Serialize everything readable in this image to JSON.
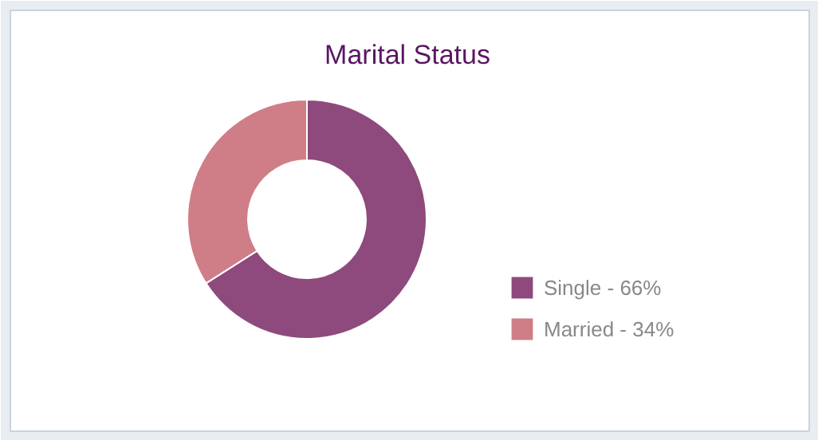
{
  "chart_data": {
    "type": "donut",
    "title": "Marital Status",
    "categories": [
      "Single - 66%",
      "Married - 34%"
    ],
    "values": [
      66,
      34
    ],
    "colors": [
      "#8e4a7c",
      "#cf7d87"
    ],
    "legend": "right"
  }
}
